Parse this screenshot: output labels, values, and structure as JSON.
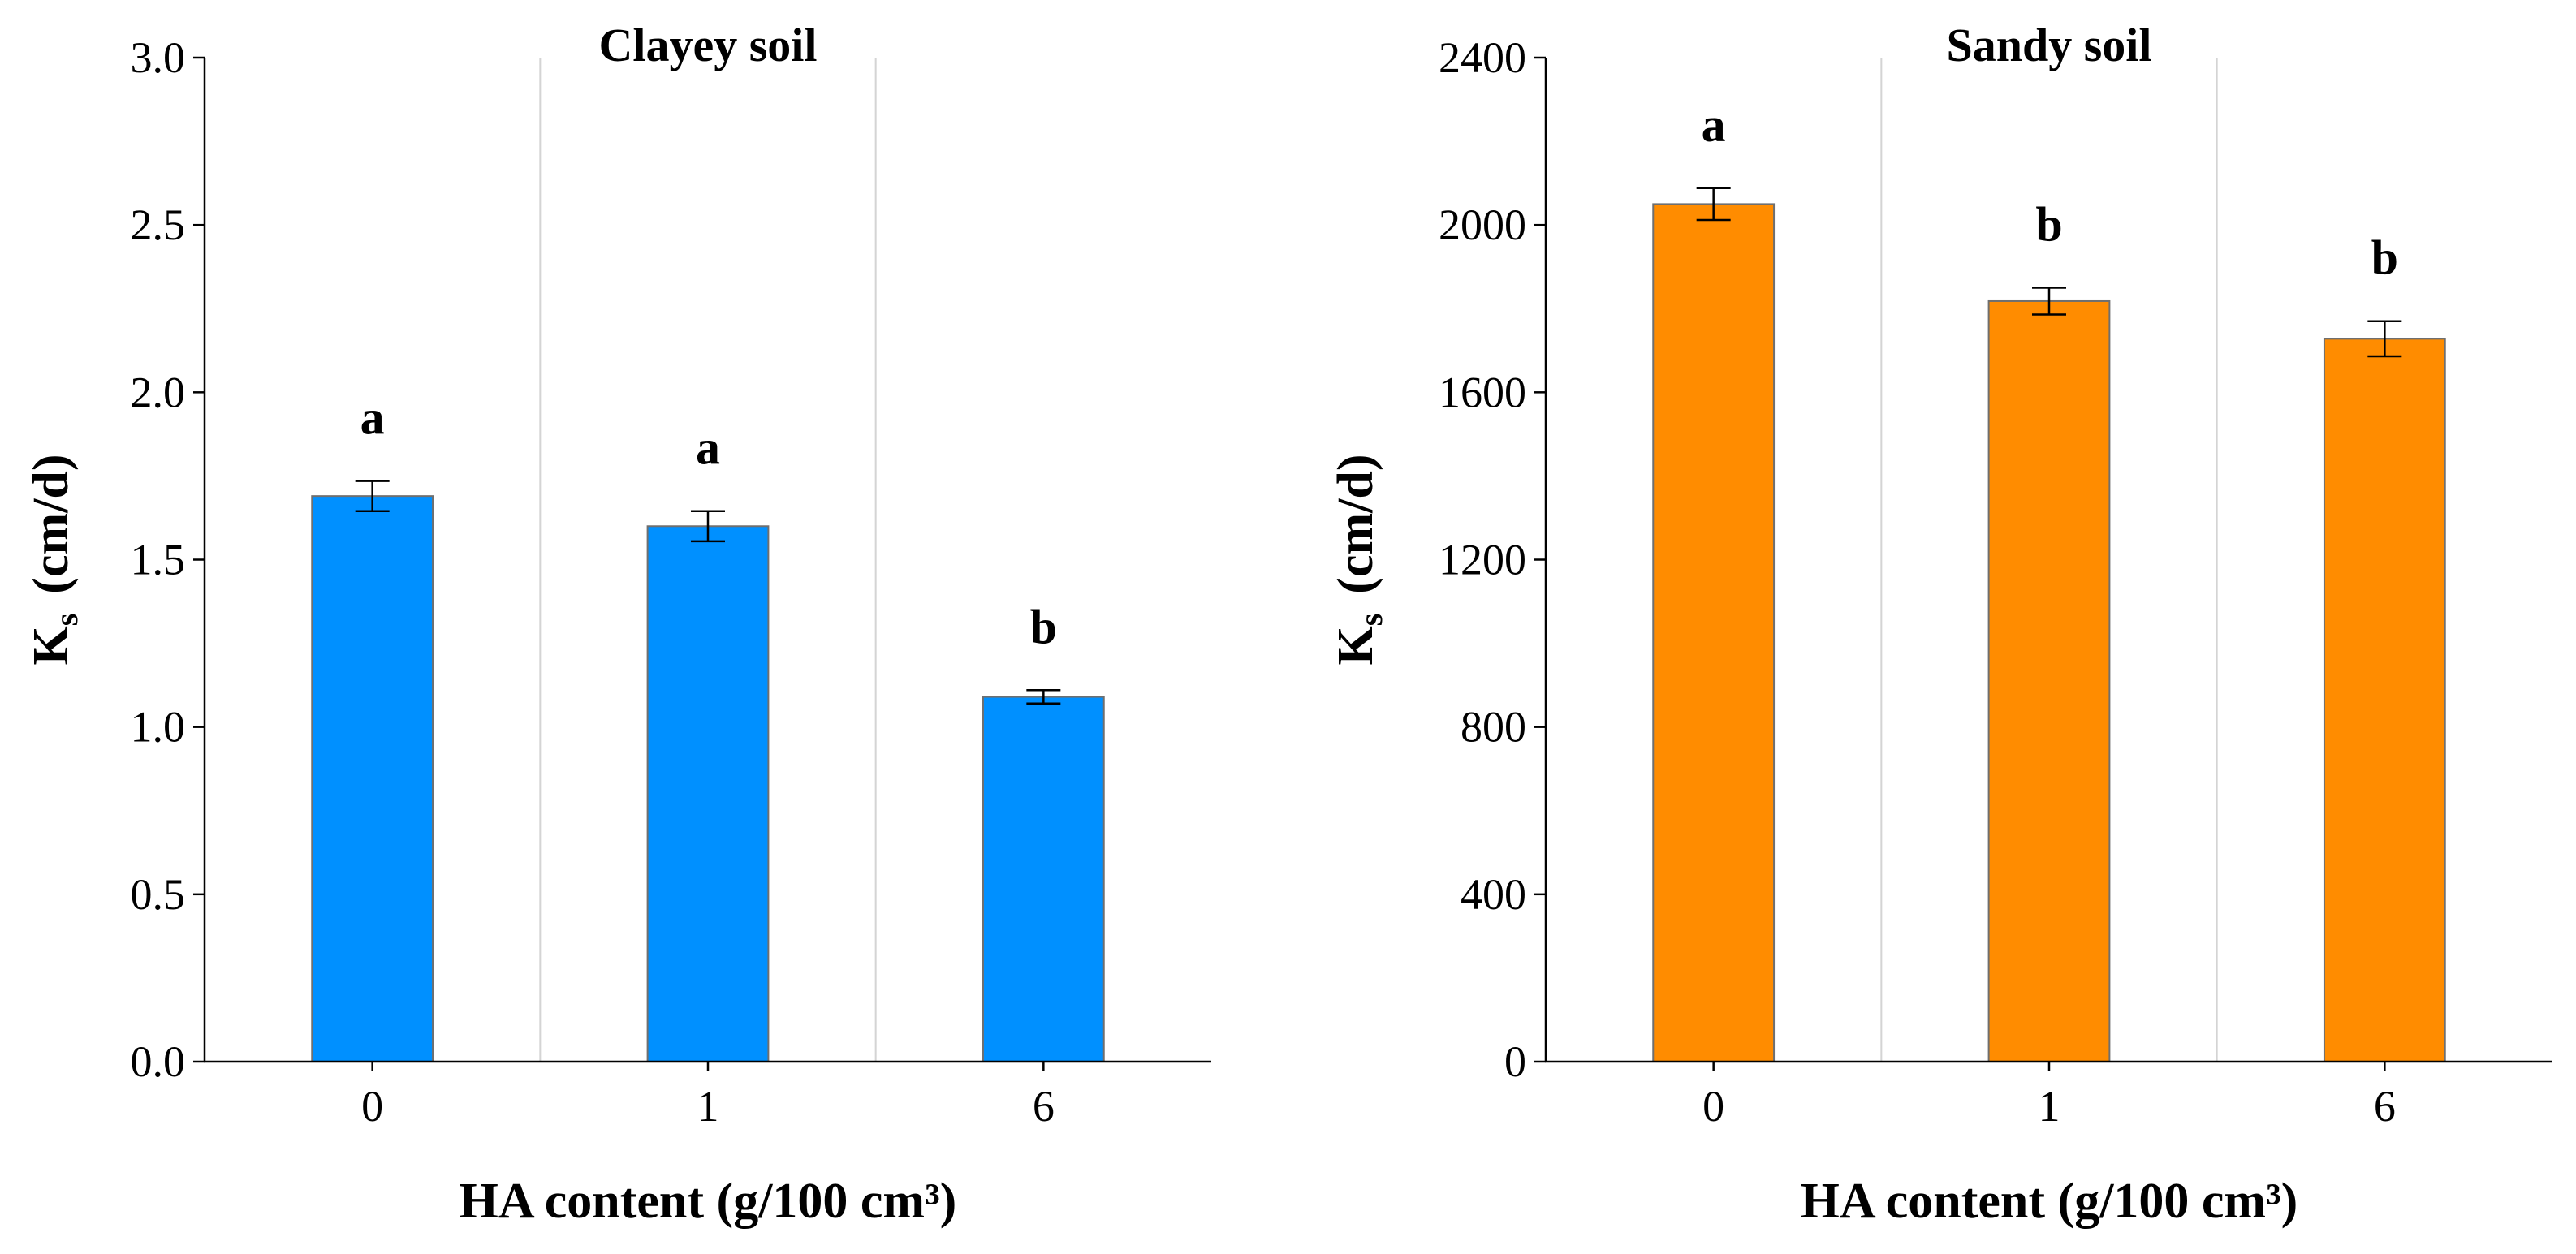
{
  "chart_data": [
    {
      "type": "bar",
      "title": "Clayey soil",
      "xlabel": "HA content (g/100 cm³)",
      "ylabel": "Ks  (cm/d)",
      "ylabel_main": "K",
      "ylabel_sub": "s",
      "ylabel_unit": "(cm/d)",
      "categories": [
        "0",
        "1",
        "6"
      ],
      "values": [
        1.69,
        1.6,
        1.09
      ],
      "errors": [
        0.045,
        0.045,
        0.02
      ],
      "significance": [
        "a",
        "a",
        "b"
      ],
      "ylim": [
        0,
        3.0
      ],
      "yticks": [
        0,
        0.5,
        1.0,
        1.5,
        2.0,
        2.5,
        3.0
      ],
      "ytick_labels": [
        "0.0",
        "0.5",
        "1.0",
        "1.5",
        "2.0",
        "2.5",
        "3.0"
      ],
      "bar_color": "#0090ff",
      "grid": "vertical separators"
    },
    {
      "type": "bar",
      "title": "Sandy soil",
      "xlabel": "HA content (g/100 cm³)",
      "ylabel": "Ks  (cm/d)",
      "ylabel_main": "K",
      "ylabel_sub": "s",
      "ylabel_unit": "(cm/d)",
      "categories": [
        "0",
        "1",
        "6"
      ],
      "values": [
        2050,
        1818,
        1728
      ],
      "errors": [
        38,
        32,
        42
      ],
      "significance": [
        "a",
        "b",
        "b"
      ],
      "ylim": [
        0,
        2400
      ],
      "yticks": [
        0,
        400,
        800,
        1200,
        1600,
        2000,
        2400
      ],
      "ytick_labels": [
        "0",
        "400",
        "800",
        "1200",
        "1600",
        "2000",
        "2400"
      ],
      "bar_color": "#ff8c00",
      "grid": "vertical separators"
    }
  ]
}
